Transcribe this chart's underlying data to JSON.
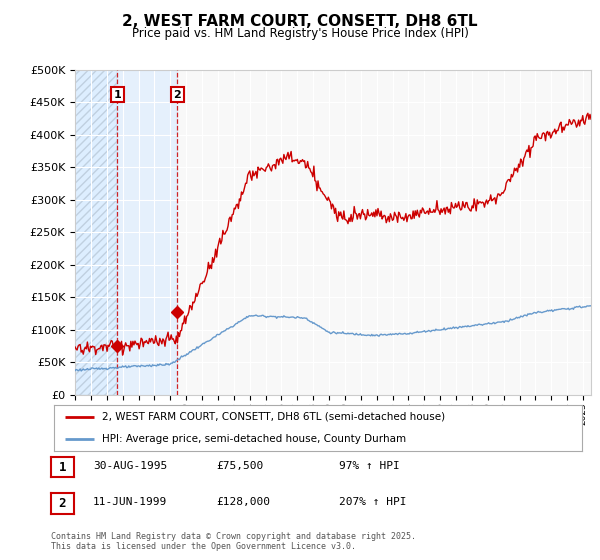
{
  "title": "2, WEST FARM COURT, CONSETT, DH8 6TL",
  "subtitle": "Price paid vs. HM Land Registry's House Price Index (HPI)",
  "legend_line1": "2, WEST FARM COURT, CONSETT, DH8 6TL (semi-detached house)",
  "legend_line2": "HPI: Average price, semi-detached house, County Durham",
  "footnote": "Contains HM Land Registry data © Crown copyright and database right 2025.\nThis data is licensed under the Open Government Licence v3.0.",
  "table_rows": [
    {
      "num": "1",
      "date": "30-AUG-1995",
      "price": "£75,500",
      "hpi": "97% ↑ HPI"
    },
    {
      "num": "2",
      "date": "11-JUN-1999",
      "price": "£128,000",
      "hpi": "207% ↑ HPI"
    }
  ],
  "ylim": [
    0,
    500000
  ],
  "yticks": [
    0,
    50000,
    100000,
    150000,
    200000,
    250000,
    300000,
    350000,
    400000,
    450000,
    500000
  ],
  "price_paid_color": "#cc0000",
  "hpi_color": "#6699cc",
  "hatch_color": "#ddeeff",
  "sale1_x": 1995.66,
  "sale1_y": 75500,
  "sale2_x": 1999.44,
  "sale2_y": 128000,
  "xmin": 1993.0,
  "xmax": 2025.5,
  "background_color": "#ffffff",
  "plot_bg_color": "#f8f8f8"
}
